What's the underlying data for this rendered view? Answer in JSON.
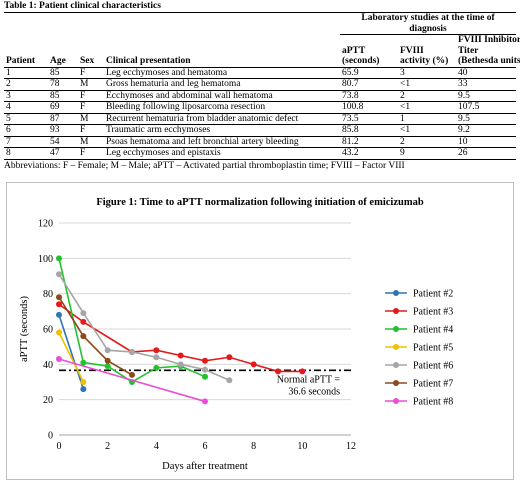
{
  "table": {
    "title": "Table 1: Patient clinical characteristics",
    "lab_group_header": "Laboratory studies at the time of diagnosis",
    "headers": {
      "patient": "Patient",
      "age": "Age",
      "sex": "Sex",
      "clinical": "Clinical presentation",
      "aptt_line1": "aPTT",
      "aptt_line2": "(seconds)",
      "fviii_line1": "FVIII",
      "fviii_line2": "activity (%)",
      "titer_line1": "FVIII Inhibitor",
      "titer_line2": "Titer",
      "titer_line3": "(Bethesda units)"
    },
    "rows": [
      {
        "patient": "1",
        "age": "85",
        "sex": "F",
        "clinical": "Leg ecchymoses and hematoma",
        "aptt": "65.9",
        "fviii": "3",
        "titer": "40"
      },
      {
        "patient": "2",
        "age": "78",
        "sex": "M",
        "clinical": "Gross hematuria and leg hematoma",
        "aptt": "80.7",
        "fviii": "<1",
        "titer": "33"
      },
      {
        "patient": "3",
        "age": "85",
        "sex": "F",
        "clinical": "Ecchymoses and abdominal wall hematoma",
        "aptt": "73.8",
        "fviii": "2",
        "titer": "9.5"
      },
      {
        "patient": "4",
        "age": "69",
        "sex": "F",
        "clinical": "Bleeding following liposarcoma resection",
        "aptt": "100.8",
        "fviii": "<1",
        "titer": "107.5"
      },
      {
        "patient": "5",
        "age": "87",
        "sex": "M",
        "clinical": "Recurrent hematuria from bladder anatomic defect",
        "aptt": "73.5",
        "fviii": "1",
        "titer": "9.5"
      },
      {
        "patient": "6",
        "age": "93",
        "sex": "F",
        "clinical": "Traumatic arm ecchymoses",
        "aptt": "85.8",
        "fviii": "<1",
        "titer": "9.2"
      },
      {
        "patient": "7",
        "age": "54",
        "sex": "M",
        "clinical": "Psoas hematoma and left bronchial artery bleeding",
        "aptt": "81.2",
        "fviii": "2",
        "titer": "10"
      },
      {
        "patient": "8",
        "age": "47",
        "sex": "F",
        "clinical": "Leg ecchymoses and epistaxis",
        "aptt": "43.2",
        "fviii": "9",
        "titer": "26"
      }
    ],
    "abbreviations": "Abbreviations: F – Female; M – Male; aPTT – Activated partial thromboplastin time; FVIII – Factor VIII"
  },
  "chart_data": {
    "type": "line",
    "title": "Figure 1: Time to aPTT normalization following initiation of emicizumab",
    "xlabel": "Days after treatment",
    "ylabel": "aPTT (seconds)",
    "xlim": [
      0,
      12
    ],
    "ylim": [
      0,
      120
    ],
    "xticks": [
      "0",
      "2",
      "4",
      "6",
      "8",
      "10",
      "12"
    ],
    "yticks": [
      "0",
      "20",
      "40",
      "60",
      "80",
      "100",
      "120"
    ],
    "grid": "horizontal",
    "legend_position": "right",
    "series": [
      {
        "name": "Patient #2",
        "color": "#2e75b6",
        "x": [
          0,
          1
        ],
        "y": [
          68,
          26
        ]
      },
      {
        "name": "Patient #3",
        "color": "#e31a1c",
        "x": [
          0,
          1,
          3,
          4,
          5,
          6,
          7,
          8,
          9,
          10
        ],
        "y": [
          74,
          64,
          47,
          48,
          45,
          42,
          44,
          40,
          36,
          36
        ]
      },
      {
        "name": "Patient #4",
        "color": "#22c22e",
        "x": [
          0,
          1,
          2,
          3,
          4,
          5,
          6
        ],
        "y": [
          100,
          41,
          39,
          30,
          38,
          39,
          33
        ]
      },
      {
        "name": "Patient #5",
        "color": "#f2c000",
        "x": [
          0,
          1
        ],
        "y": [
          58,
          30
        ]
      },
      {
        "name": "Patient #6",
        "color": "#a6a6a6",
        "x": [
          0,
          1,
          2,
          3,
          4,
          5,
          6,
          7
        ],
        "y": [
          91,
          69,
          48,
          47,
          44,
          40,
          37,
          31
        ]
      },
      {
        "name": "Patient #7",
        "color": "#8b4a1a",
        "x": [
          0,
          1,
          2,
          3
        ],
        "y": [
          78,
          56,
          42,
          34
        ]
      },
      {
        "name": "Patient #8",
        "color": "#e84fd6",
        "x": [
          0,
          6
        ],
        "y": [
          43,
          19
        ]
      }
    ],
    "reference_line": {
      "y": 36.6,
      "label_line1": "Normal aPTT =",
      "label_line2": "36.6 seconds"
    }
  }
}
